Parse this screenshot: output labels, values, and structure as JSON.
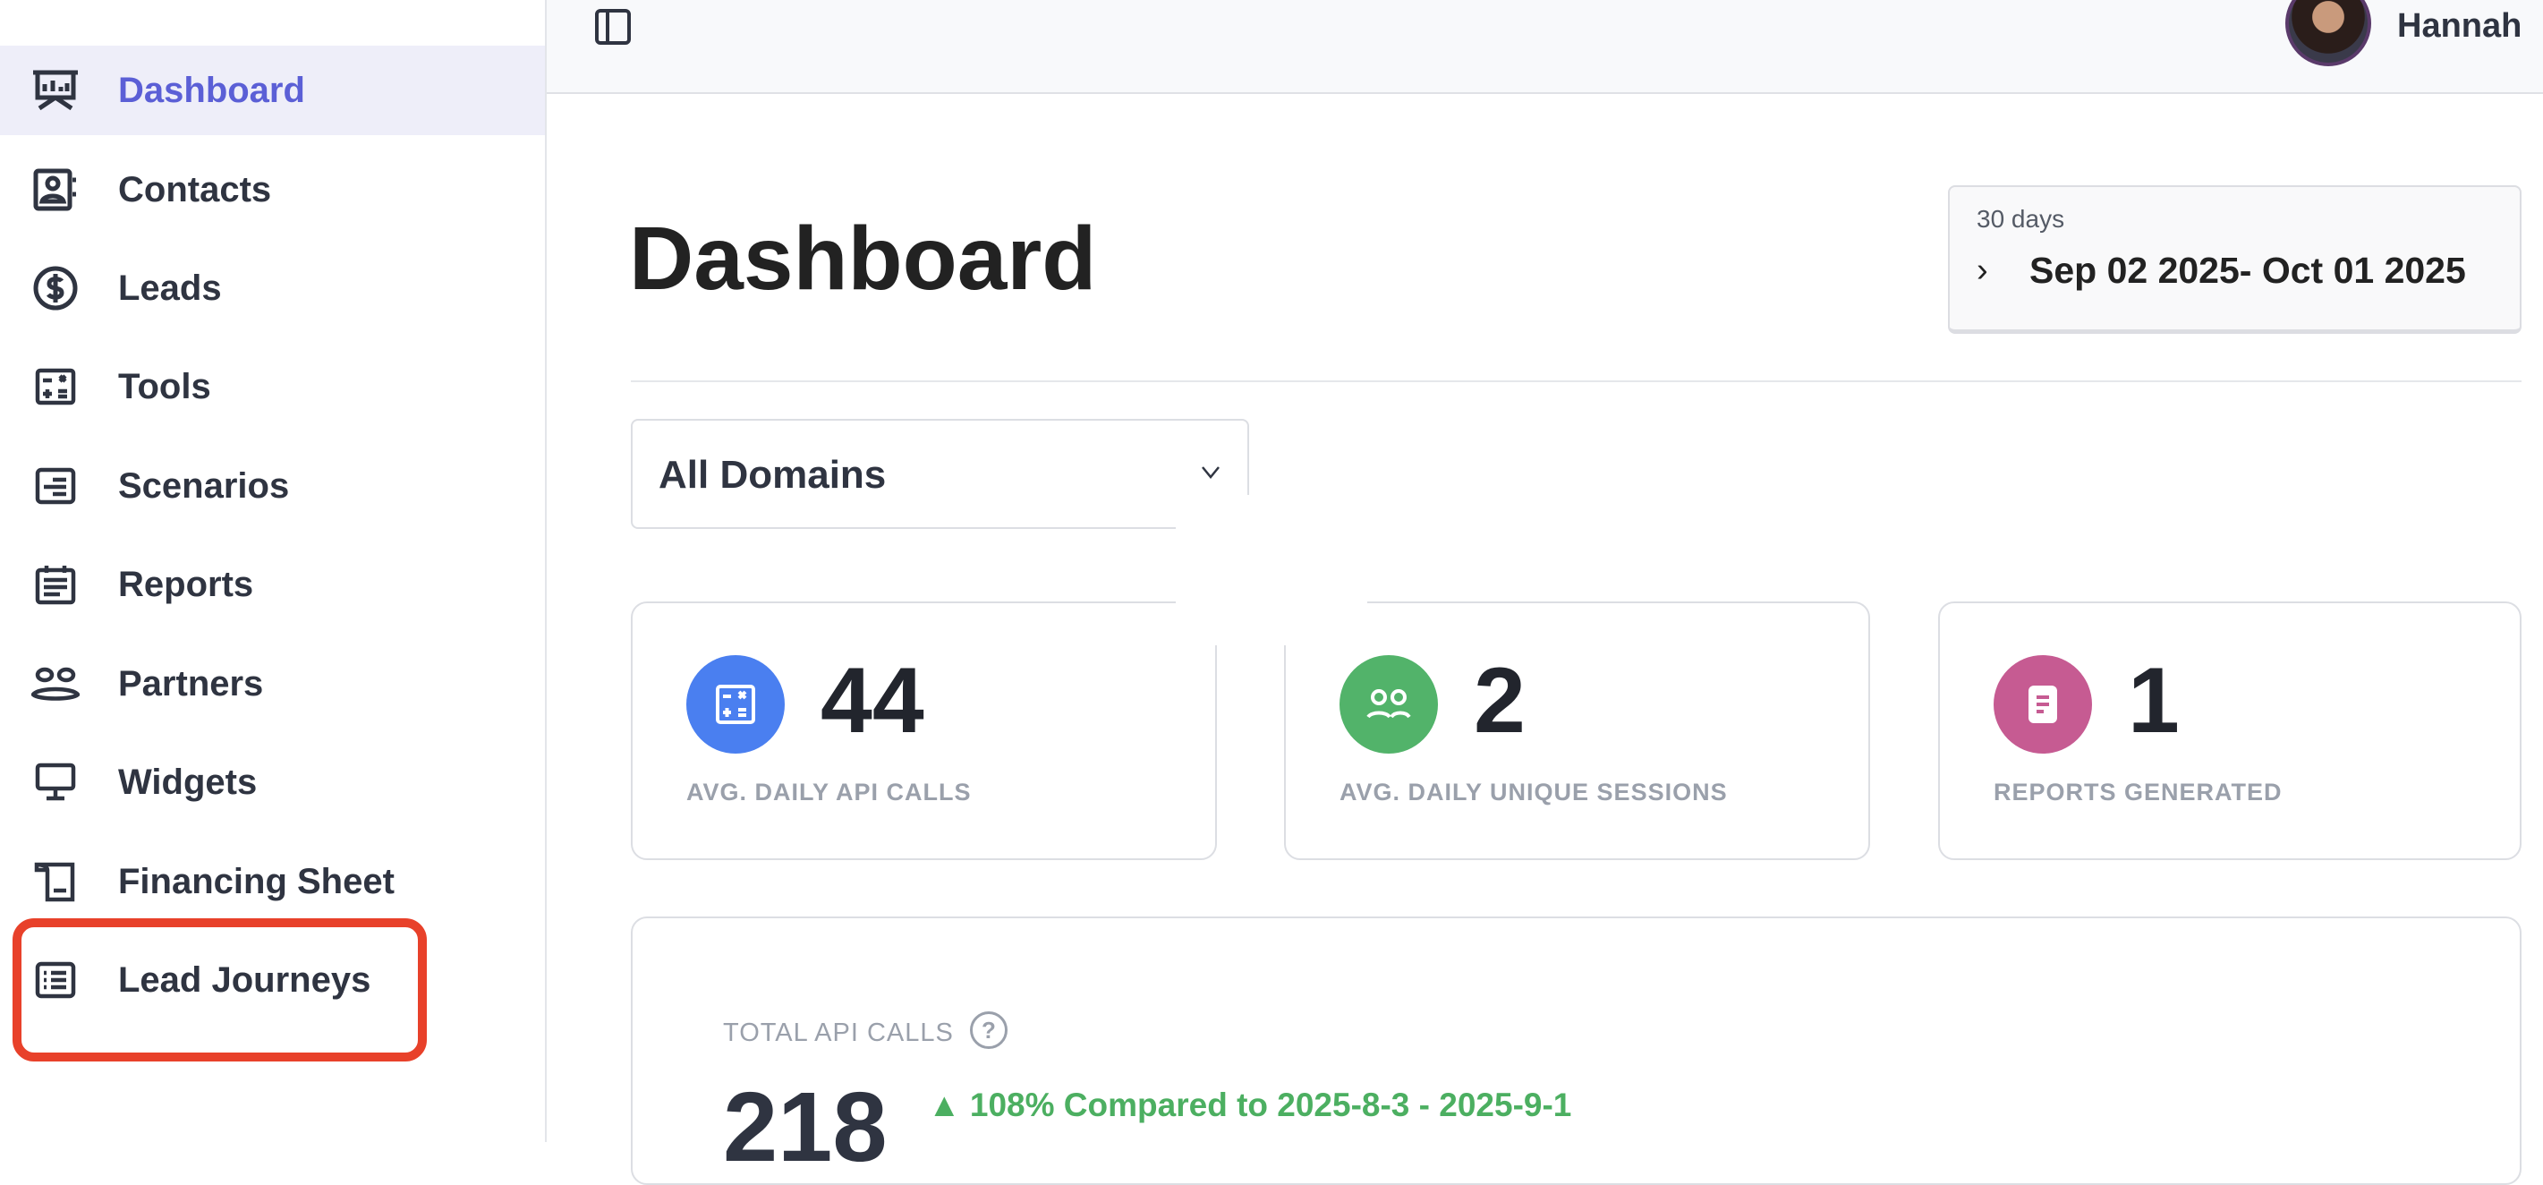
{
  "sidebar": {
    "items": [
      {
        "label": "Dashboard",
        "icon": "presentation-chart-icon",
        "active": true
      },
      {
        "label": "Contacts",
        "icon": "contact-book-icon"
      },
      {
        "label": "Leads",
        "icon": "dollar-circle-icon"
      },
      {
        "label": "Tools",
        "icon": "calculator-icon"
      },
      {
        "label": "Scenarios",
        "icon": "document-lines-icon"
      },
      {
        "label": "Reports",
        "icon": "report-icon"
      },
      {
        "label": "Partners",
        "icon": "users-icon"
      },
      {
        "label": "Widgets",
        "icon": "monitor-icon"
      },
      {
        "label": "Financing Sheet",
        "icon": "scroll-icon"
      },
      {
        "label": "Lead Journeys",
        "icon": "list-icon",
        "highlighted": true
      }
    ]
  },
  "header": {
    "user_name": "Hannah",
    "highlight_color": "#e8412a"
  },
  "main": {
    "title": "Dashboard",
    "date_range": {
      "preset": "30 days",
      "range": "Sep 02 2025- Oct 01 2025"
    },
    "domain_select": {
      "value": "All Domains"
    },
    "stats": [
      {
        "value": "44",
        "label": "AVG. DAILY API CALLS",
        "color": "#4a7ff0",
        "icon": "calculator-icon"
      },
      {
        "value": "2",
        "label": "AVG. DAILY UNIQUE SESSIONS",
        "color": "#52b36a",
        "icon": "users-icon"
      },
      {
        "value": "1",
        "label": "REPORTS GENERATED",
        "color": "#c65b92",
        "icon": "document-icon"
      }
    ],
    "total": {
      "label": "TOTAL API CALLS",
      "help": "?",
      "value": "218",
      "comparison": "▲ 108% Compared to 2025-8-3 - 2025-9-1"
    }
  }
}
